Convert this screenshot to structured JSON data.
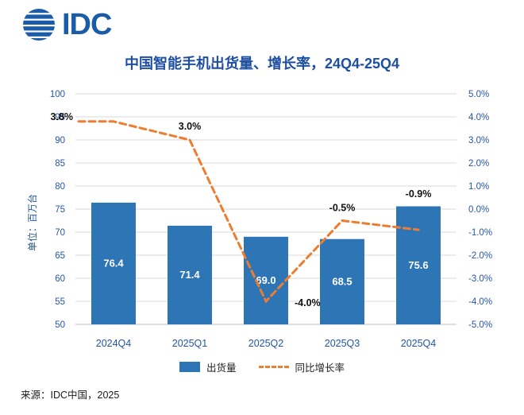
{
  "logo": {
    "text": "IDC"
  },
  "title": "中国智能手机出货量、增长率，24Q4-25Q4",
  "source": "来源：IDC中国，2025",
  "legend": {
    "bars": "出货量",
    "line": "同比增长率"
  },
  "colors": {
    "bar": "#2E75B6",
    "line": "#ED7D31",
    "title": "#1F4FA0",
    "axis_text": "#2455A4",
    "grid": "#D9D9D9",
    "axis_line": "#BFBFBF",
    "point_label": "#111111",
    "bar_label": "#FFFFFF",
    "logo": "#1A5CA8"
  },
  "chart_data": {
    "type": "bar",
    "subtype": "bar+line combo, dual axis",
    "title": "中国智能手机出货量、增长率，24Q4-25Q4",
    "categories": [
      "2024Q4",
      "2025Q1",
      "2025Q2",
      "2025Q3",
      "2025Q4"
    ],
    "series": [
      {
        "name": "出货量",
        "type": "bar",
        "axis": "left",
        "values": [
          76.4,
          71.4,
          69.0,
          68.5,
          75.6
        ]
      },
      {
        "name": "同比增长率",
        "type": "line",
        "axis": "right",
        "values": [
          3.8,
          3.0,
          -4.0,
          -0.5,
          -0.9
        ],
        "labels": [
          "3.8%",
          "3.0%",
          "-4.0%",
          "-0.5%",
          "-0.9%"
        ]
      }
    ],
    "left_axis": {
      "min": 50,
      "max": 100,
      "step": 5,
      "unit_label": "单位：百万台"
    },
    "right_axis": {
      "min": -5,
      "max": 5,
      "step": 1,
      "format": "0.0%"
    },
    "grid": true,
    "legend_position": "bottom"
  }
}
